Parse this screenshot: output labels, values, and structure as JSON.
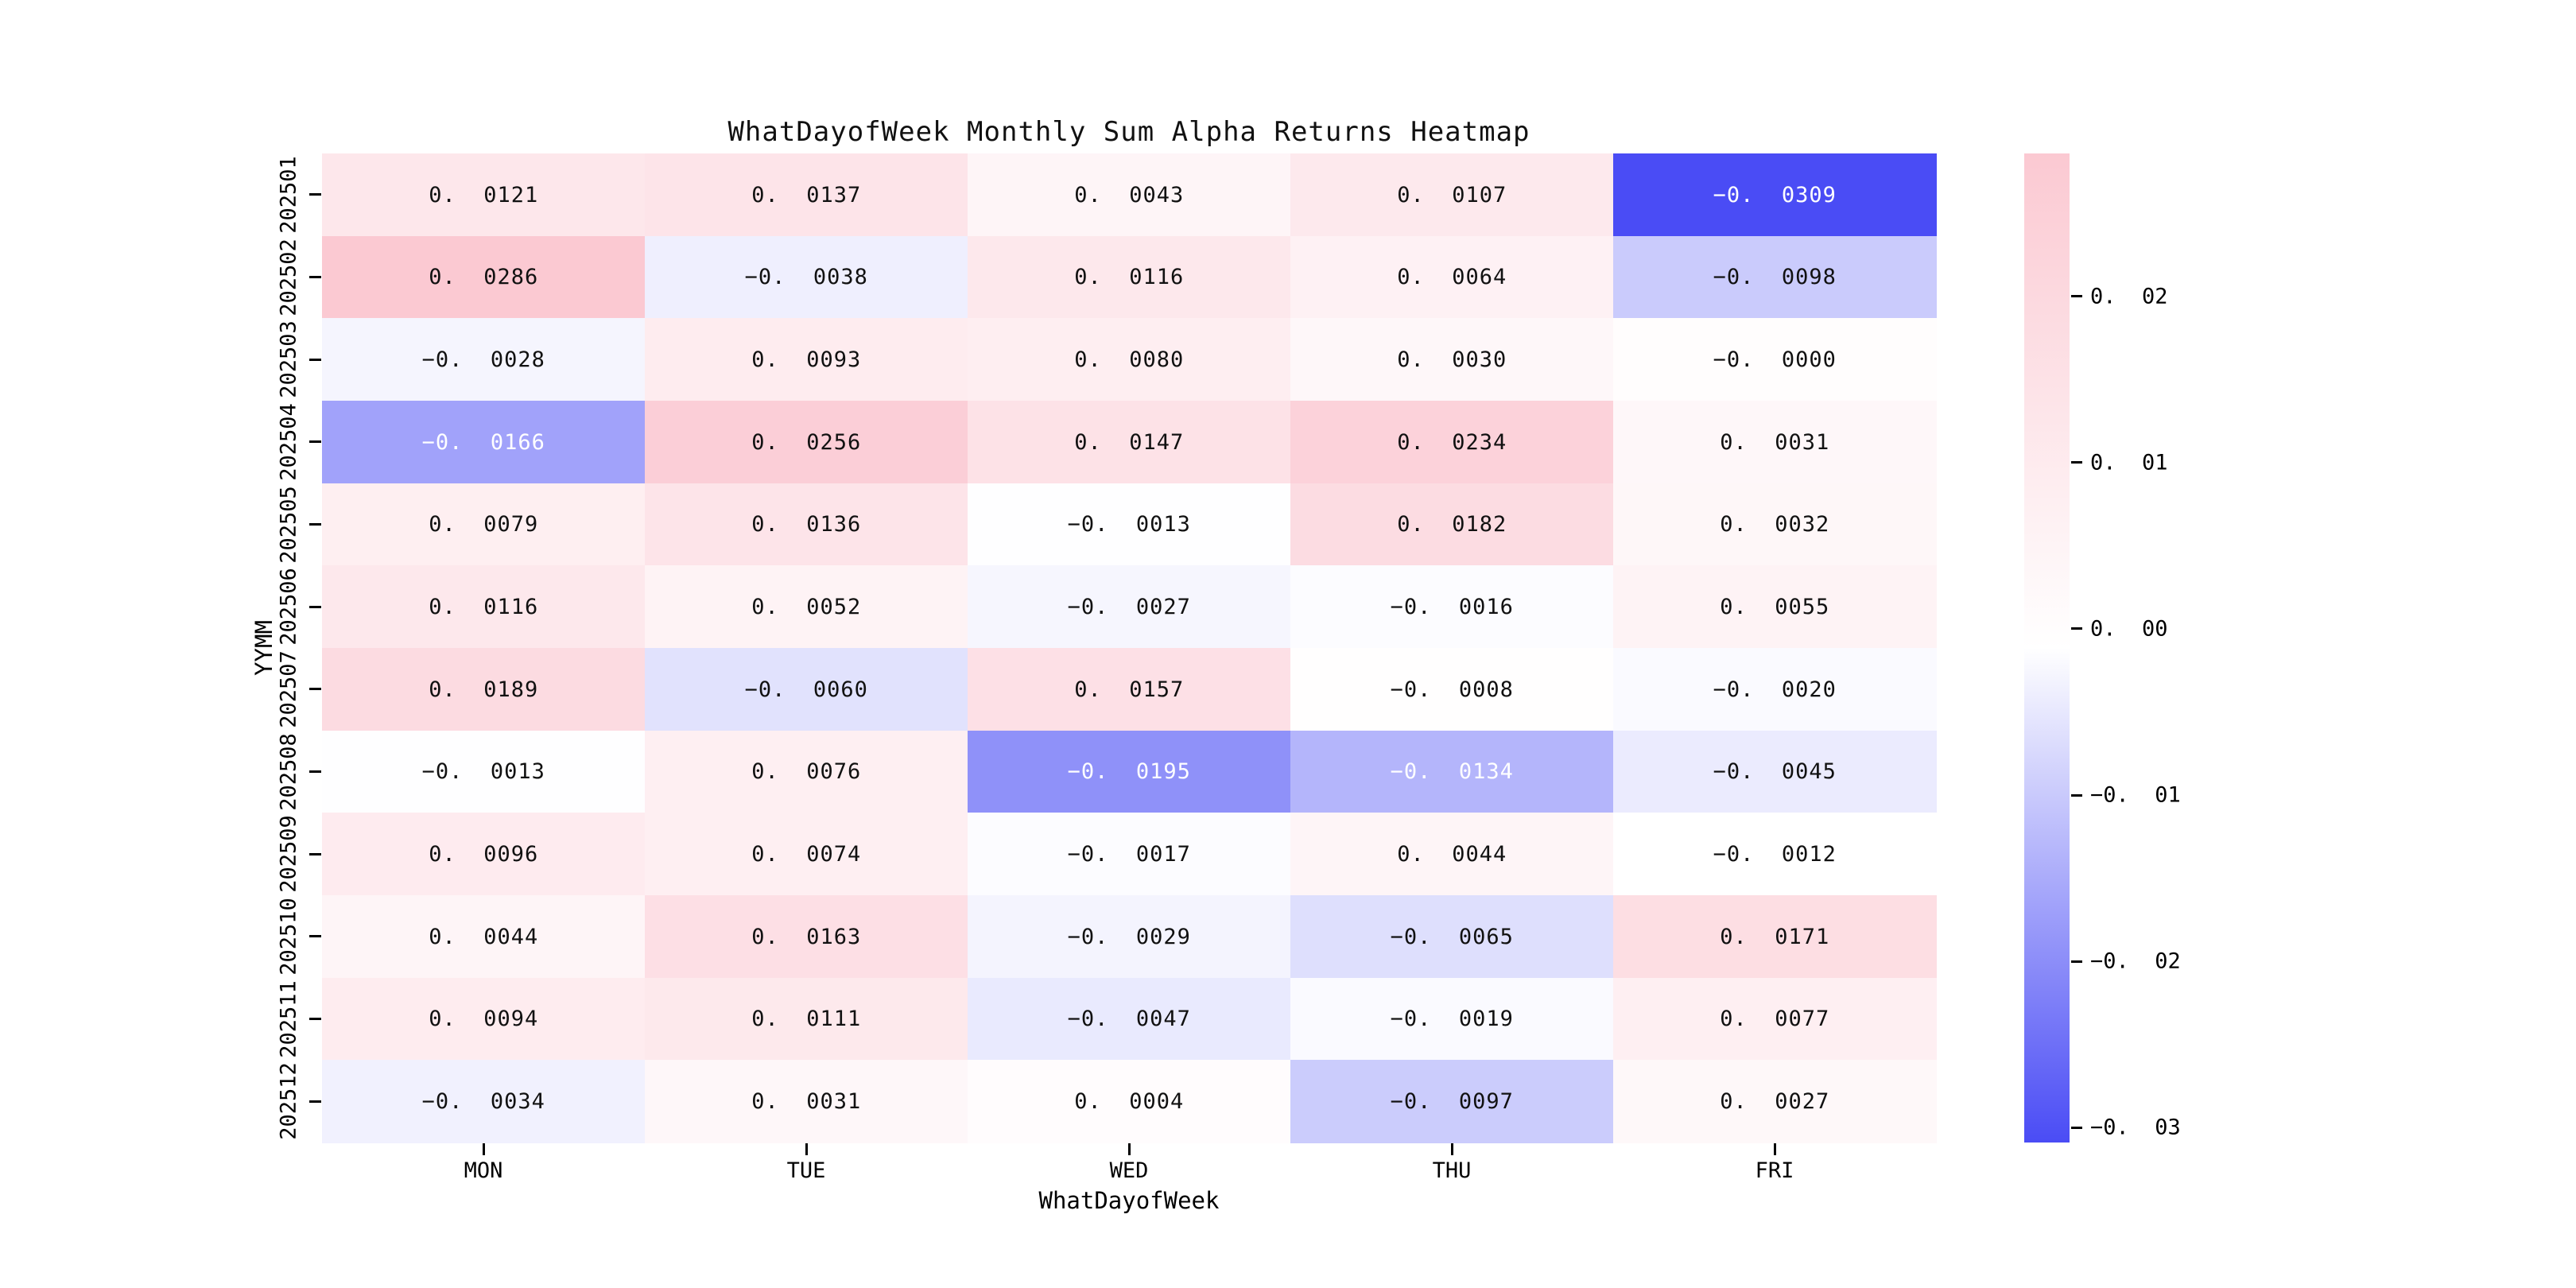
{
  "chart_data": {
    "type": "heatmap",
    "title": "WhatDayofWeek Monthly Sum Alpha Returns Heatmap",
    "xlabel": "WhatDayofWeek",
    "ylabel": "YYMM",
    "columns": [
      "MON",
      "TUE",
      "WED",
      "THU",
      "FRI"
    ],
    "rows": [
      "202501",
      "202502",
      "202503",
      "202504",
      "202505",
      "202506",
      "202507",
      "202508",
      "202509",
      "202510",
      "202511",
      "202512"
    ],
    "values": [
      [
        "0.0121",
        "0.0137",
        "0.0043",
        "0.0107",
        "-0.0309"
      ],
      [
        "0.0286",
        "-0.0038",
        "0.0116",
        "0.0064",
        "-0.0098"
      ],
      [
        "-0.0028",
        "0.0093",
        "0.0080",
        "0.0030",
        "-0.0000"
      ],
      [
        "-0.0166",
        "0.0256",
        "0.0147",
        "0.0234",
        "0.0031"
      ],
      [
        "0.0079",
        "0.0136",
        "-0.0013",
        "0.0182",
        "0.0032"
      ],
      [
        "0.0116",
        "0.0052",
        "-0.0027",
        "-0.0016",
        "0.0055"
      ],
      [
        "0.0189",
        "-0.0060",
        "0.0157",
        "-0.0008",
        "-0.0020"
      ],
      [
        "-0.0013",
        "0.0076",
        "-0.0195",
        "-0.0134",
        "-0.0045"
      ],
      [
        "0.0096",
        "0.0074",
        "-0.0017",
        "0.0044",
        "-0.0012"
      ],
      [
        "0.0044",
        "0.0163",
        "-0.0029",
        "-0.0065",
        "0.0171"
      ],
      [
        "0.0094",
        "0.0111",
        "-0.0047",
        "-0.0019",
        "0.0077"
      ],
      [
        "-0.0034",
        "0.0031",
        "0.0004",
        "-0.0097",
        "0.0027"
      ]
    ],
    "vmin": -0.0309,
    "vmax": 0.0286,
    "colorbar_ticks": [
      "0.02",
      "0.01",
      "0.00",
      "-0.01",
      "-0.02",
      "-0.03"
    ],
    "colorbar_tick_values": [
      0.02,
      0.01,
      0.0,
      -0.01,
      -0.02,
      -0.03
    ],
    "colormap": {
      "negative_end": "#4a4cf5",
      "center": "#ffffff",
      "positive_end": "#fbc9d2"
    },
    "white_text_below": -0.012,
    "text_color_dark": "#111111",
    "text_color_light": "#ffffff",
    "legend_position": "right",
    "grid": false
  }
}
